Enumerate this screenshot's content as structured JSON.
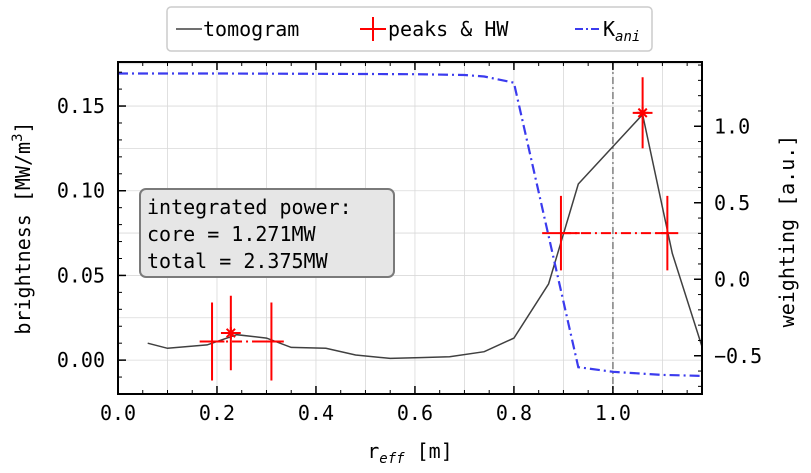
{
  "chart_data": {
    "type": "line",
    "xlabel": "r",
    "xlabel_sub": "eff",
    "xlabel_unit": " [m]",
    "ylabel": "brightness [MW/m",
    "ylabel_sup": "3",
    "ylabel_close": "]",
    "y2label": "weighting [a.u.]",
    "xlim": [
      0.0,
      1.18
    ],
    "ylim": [
      -0.02,
      0.176
    ],
    "y2lim": [
      -0.75,
      1.42
    ],
    "grid": true,
    "legend_placement": "top-center",
    "x_ticks": [
      0.0,
      0.2,
      0.4,
      0.6,
      0.8,
      1.0
    ],
    "x_tick_labels": [
      "0.0",
      "0.2",
      "0.4",
      "0.6",
      "0.8",
      "1.0"
    ],
    "y_ticks": [
      0.0,
      0.05,
      0.1,
      0.15
    ],
    "y_tick_labels": [
      "0.00",
      "0.05",
      "0.10",
      "0.15"
    ],
    "y2_ticks": [
      -0.5,
      0.0,
      0.5,
      1.0
    ],
    "y2_tick_labels": [
      "−0.5",
      "0.0",
      "0.5",
      "1.0"
    ],
    "vline_x": 1.0,
    "series": [
      {
        "name": "tomogram",
        "color": "#404040",
        "style": "solid",
        "axis": "left",
        "x": [
          0.06,
          0.1,
          0.18,
          0.24,
          0.3,
          0.35,
          0.42,
          0.48,
          0.55,
          0.61,
          0.67,
          0.74,
          0.8,
          0.87,
          0.93,
          1.06,
          1.12,
          1.18
        ],
        "y": [
          0.01,
          0.007,
          0.009,
          0.015,
          0.013,
          0.0075,
          0.007,
          0.003,
          0.001,
          0.0015,
          0.002,
          0.005,
          0.013,
          0.045,
          0.104,
          0.145,
          0.063,
          0.008
        ]
      },
      {
        "name": "peaks & HW",
        "color": "#ff0000",
        "style": "errorbar",
        "axis": "left",
        "peaks": [
          {
            "x": 0.228,
            "y": 0.016,
            "yerr": 0.022,
            "xerr": 0.02
          },
          {
            "x": 1.06,
            "y": 0.146,
            "yerr": 0.021,
            "xerr": 0.02
          }
        ],
        "halfwidths": [
          {
            "x": 0.19,
            "y": 0.011,
            "yerr": 0.023,
            "xerr": 0.025
          },
          {
            "x": 0.31,
            "y": 0.011,
            "yerr": 0.023,
            "xerr": 0.025
          },
          {
            "x": 0.895,
            "y": 0.075,
            "yerr": 0.022,
            "xerr": 0.038
          },
          {
            "x": 1.11,
            "y": 0.075,
            "yerr": 0.022,
            "xerr": 0.022
          }
        ]
      },
      {
        "name": "K",
        "name_sub": "ani",
        "color": "#3b3bee",
        "style": "dashdot",
        "axis": "right",
        "x": [
          0.0,
          0.2,
          0.4,
          0.6,
          0.7,
          0.74,
          0.8,
          0.93,
          1.0,
          1.1,
          1.18
        ],
        "y": [
          1.345,
          1.345,
          1.343,
          1.34,
          1.335,
          1.325,
          1.285,
          -0.575,
          -0.605,
          -0.625,
          -0.632
        ]
      }
    ],
    "annotation": {
      "lines": [
        "integrated power:",
        "core = 1.271MW",
        "total = 2.375MW"
      ]
    }
  }
}
